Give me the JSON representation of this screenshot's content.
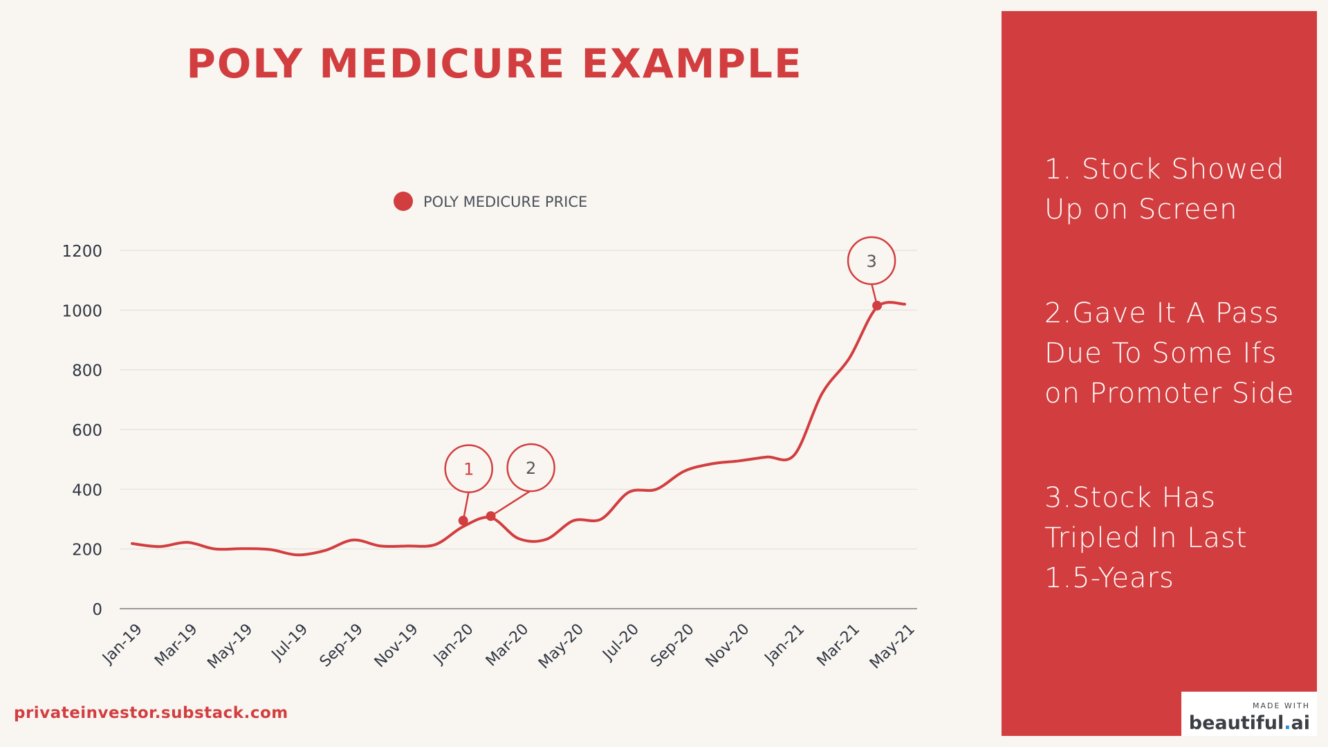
{
  "title": "POLY MEDICURE EXAMPLE",
  "footer_link": "privateinvestor.substack.com",
  "side_panel": {
    "items": [
      {
        "text": "1. Stock Showed Up on Screen"
      },
      {
        "text": "2.Gave It A Pass Due To Some Ifs on Promoter Side"
      },
      {
        "text": "3.Stock Has Tripled In Last 1.5-Years"
      }
    ]
  },
  "badge": {
    "made_with": "MADE WITH",
    "brand_main": "beautiful",
    "brand_dot": ".",
    "brand_suffix": "ai"
  },
  "colors": {
    "accent": "#d23e3f",
    "background": "#f9f6f2",
    "text_axis": "#2f3540",
    "grid": "#e2dfda"
  },
  "chart_data": {
    "type": "line",
    "legend": {
      "label": "POLY MEDICURE PRICE",
      "position": "top-center"
    },
    "ylim": [
      0,
      1200
    ],
    "yticks": [
      0,
      200,
      400,
      600,
      800,
      1000,
      1200
    ],
    "grid": true,
    "xticks": [
      "Jan-19",
      "Mar-19",
      "May-19",
      "Jul-19",
      "Sep-19",
      "Nov-19",
      "Jan-20",
      "Mar-20",
      "May-20",
      "Jul-20",
      "Sep-20",
      "Nov-20",
      "Jan-21",
      "Mar-21",
      "May-21"
    ],
    "x": [
      "Jan-19",
      "Feb-19",
      "Mar-19",
      "Apr-19",
      "May-19",
      "Jun-19",
      "Jul-19",
      "Aug-19",
      "Sep-19",
      "Oct-19",
      "Nov-19",
      "Dec-19",
      "Jan-20",
      "Feb-20",
      "Mar-20",
      "Apr-20",
      "May-20",
      "Jun-20",
      "Jul-20",
      "Aug-20",
      "Sep-20",
      "Oct-20",
      "Nov-20",
      "Dec-20",
      "Jan-21",
      "Feb-21",
      "Mar-21",
      "Apr-21",
      "May-21"
    ],
    "series": [
      {
        "name": "POLY MEDICURE PRICE",
        "values": [
          218,
          208,
          222,
          200,
          201,
          198,
          180,
          195,
          230,
          210,
          210,
          215,
          275,
          305,
          235,
          232,
          295,
          300,
          390,
          400,
          460,
          485,
          495,
          508,
          515,
          720,
          840,
          1010,
          1020
        ]
      }
    ],
    "annotations": [
      {
        "label": "1",
        "x": "Jan-20",
        "y": 295
      },
      {
        "label": "2",
        "x": "Feb-20",
        "y": 310
      },
      {
        "label": "3",
        "x": "Apr-21",
        "y": 1015
      }
    ]
  }
}
